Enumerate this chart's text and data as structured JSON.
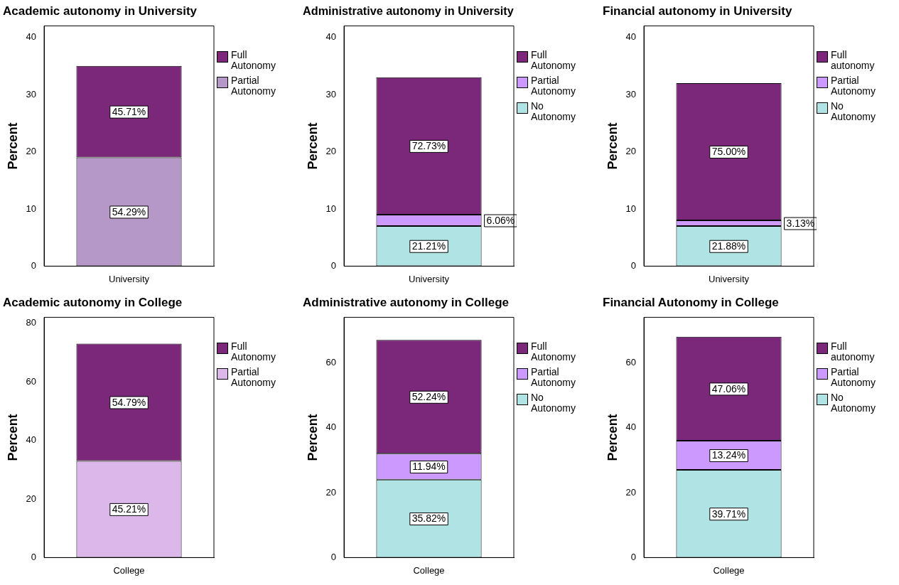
{
  "chart_data": [
    {
      "type": "bar",
      "title": "Academic autonomy in University",
      "ylabel": "Percent",
      "categories": [
        "University"
      ],
      "stacked": true,
      "ylim": [
        0,
        42
      ],
      "yticks": [
        0,
        10,
        20,
        30,
        40
      ],
      "legend": "right",
      "grid": false,
      "series": [
        {
          "name": "Partial Autonomy",
          "color": "#b698c8",
          "values": [
            19
          ]
        },
        {
          "name": "Full Autonomy",
          "color": "#7b277a",
          "values": [
            16
          ]
        }
      ],
      "annotations": [
        "54.29%",
        "45.71%"
      ]
    },
    {
      "type": "bar",
      "title": "Administrative autonomy in University",
      "ylabel": "Percent",
      "categories": [
        "University"
      ],
      "stacked": true,
      "ylim": [
        0,
        42
      ],
      "yticks": [
        0,
        10,
        20,
        30,
        40
      ],
      "legend": "right",
      "grid": false,
      "series": [
        {
          "name": "No Autonomy",
          "color": "#b0e4e4",
          "values": [
            7
          ]
        },
        {
          "name": "Partial Autonomy",
          "color": "#cc99ff",
          "values": [
            2
          ]
        },
        {
          "name": "Full Autonomy",
          "color": "#7b277a",
          "values": [
            24
          ]
        }
      ],
      "annotations": [
        "21.21%",
        "6.06%",
        "72.73%"
      ]
    },
    {
      "type": "bar",
      "title": "Financial autonomy in University",
      "ylabel": "Percent",
      "categories": [
        "University"
      ],
      "stacked": true,
      "ylim": [
        0,
        42
      ],
      "yticks": [
        0,
        10,
        20,
        30,
        40
      ],
      "legend": "right",
      "grid": false,
      "series": [
        {
          "name": "No Autonomy",
          "color": "#b0e4e4",
          "values": [
            7
          ]
        },
        {
          "name": "Partial Autonomy",
          "color": "#cc99ff",
          "values": [
            1
          ]
        },
        {
          "name": "Full autonomy",
          "color": "#7b277a",
          "values": [
            24
          ]
        }
      ],
      "annotations": [
        "21.88%",
        "3.13%",
        "75.00%"
      ]
    },
    {
      "type": "bar",
      "title": "Academic autonomy in College",
      "ylabel": "Percent",
      "categories": [
        "College"
      ],
      "stacked": true,
      "ylim": [
        0,
        82
      ],
      "yticks": [
        0,
        20,
        40,
        60,
        80
      ],
      "legend": "right",
      "grid": false,
      "series": [
        {
          "name": "Partial Autonomy",
          "color": "#dcb8ea",
          "values": [
            33
          ]
        },
        {
          "name": "Full Autonomy",
          "color": "#7b277a",
          "values": [
            40
          ]
        }
      ],
      "annotations": [
        "45.21%",
        "54.79%"
      ]
    },
    {
      "type": "bar",
      "title": "Administrative autonomy in College",
      "ylabel": "Percent",
      "categories": [
        "College"
      ],
      "stacked": true,
      "ylim": [
        0,
        74
      ],
      "yticks": [
        0,
        20,
        40,
        60
      ],
      "legend": "right",
      "grid": false,
      "series": [
        {
          "name": "No Autonomy",
          "color": "#b0e4e4",
          "values": [
            24
          ]
        },
        {
          "name": "Partial Autonomy",
          "color": "#cc99ff",
          "values": [
            8
          ]
        },
        {
          "name": "Full Autonomy",
          "color": "#7b277a",
          "values": [
            35
          ]
        }
      ],
      "annotations": [
        "35.82%",
        "11.94%",
        "52.24%"
      ]
    },
    {
      "type": "bar",
      "title": "Financial Autonomy in College",
      "ylabel": "Percent",
      "categories": [
        "College"
      ],
      "stacked": true,
      "ylim": [
        0,
        74
      ],
      "yticks": [
        0,
        20,
        40,
        60
      ],
      "legend": "right",
      "grid": false,
      "series": [
        {
          "name": "No Autonomy",
          "color": "#b0e4e4",
          "values": [
            27
          ]
        },
        {
          "name": "Partial Autonomy",
          "color": "#cc99ff",
          "values": [
            9
          ]
        },
        {
          "name": "Full autonomy",
          "color": "#7b277a",
          "values": [
            32
          ]
        }
      ],
      "annotations": [
        "39.71%",
        "13.24%",
        "47.06%"
      ]
    }
  ]
}
